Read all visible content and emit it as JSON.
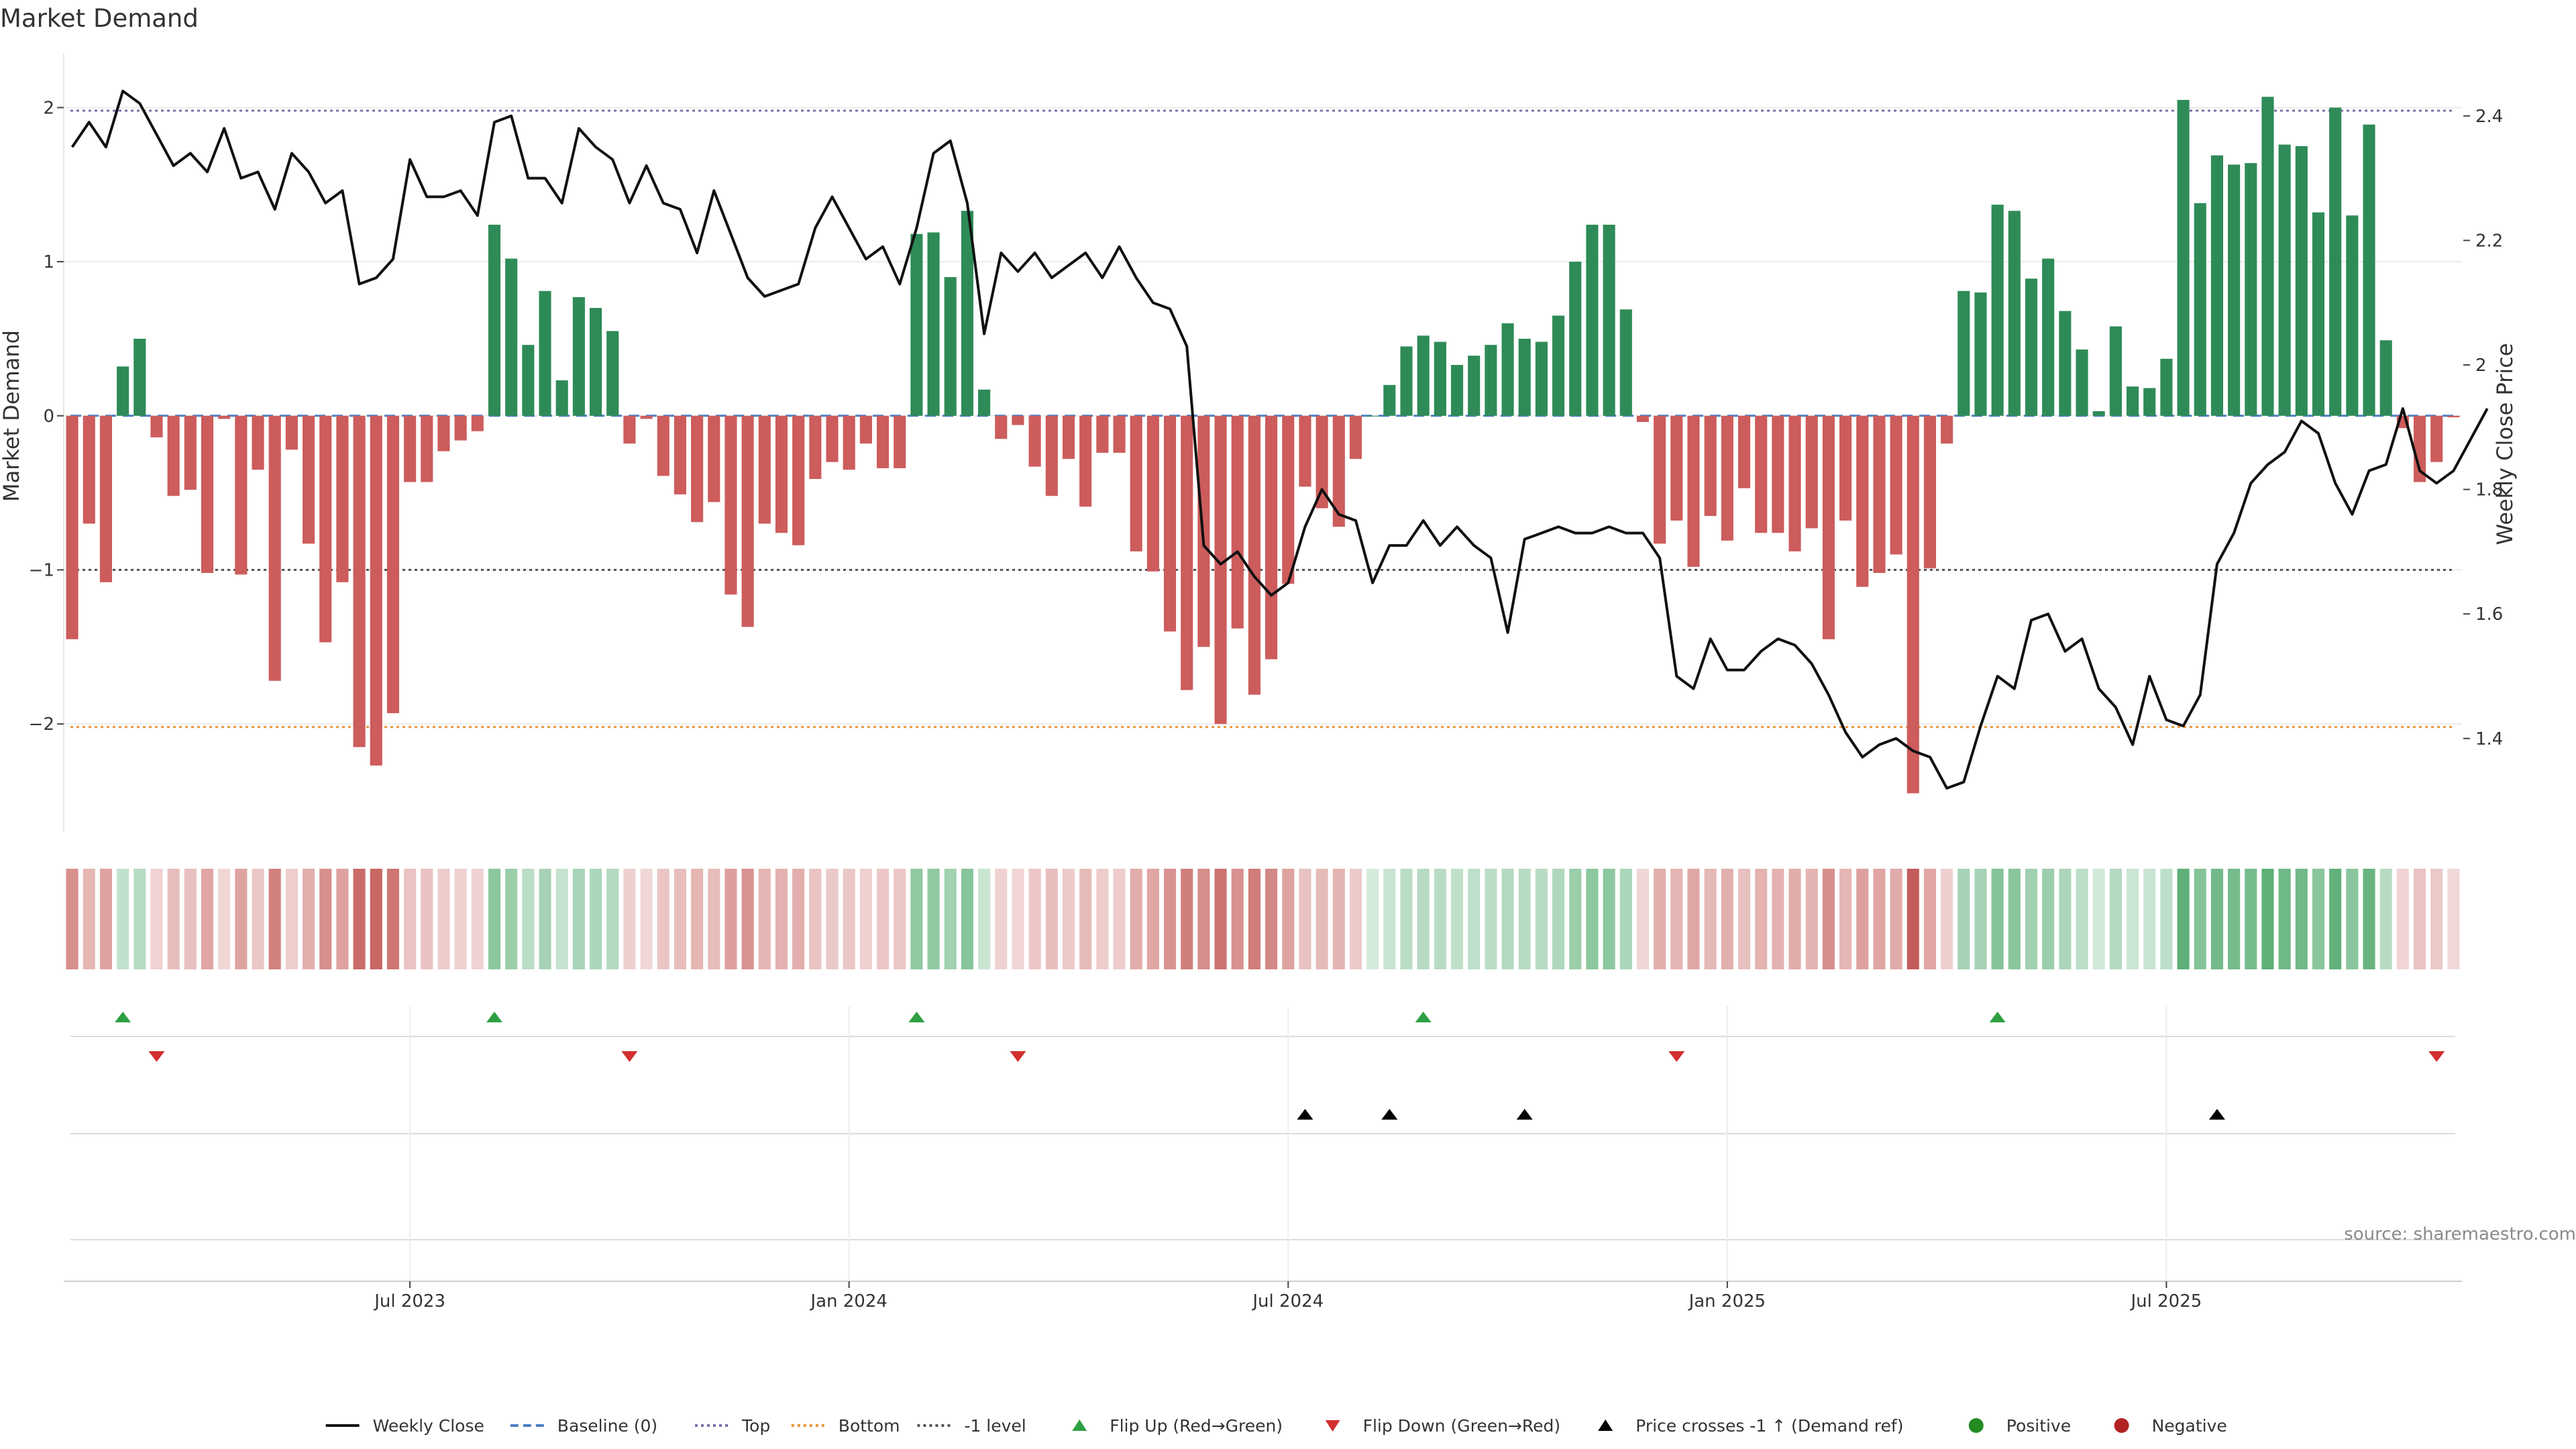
{
  "chart_data": {
    "type": "bar+line",
    "title": "Market Demand",
    "ylabel_left": "Market Demand",
    "ylabel_right": "Weekly Close Price",
    "ylim_left": [
      -2.7,
      2.35
    ],
    "ylim_right": [
      1.25,
      2.5
    ],
    "yticks_left": [
      -2,
      -1,
      0,
      1,
      2
    ],
    "yticks_left_labels": [
      "−2",
      "−1",
      "0",
      "1",
      "2"
    ],
    "yticks_right": [
      1.4,
      1.6,
      1.8,
      2.0,
      2.2,
      2.4
    ],
    "yticks_right_labels": [
      "1.4",
      "1.6",
      "1.8",
      "2",
      "2.2",
      "2.4"
    ],
    "x_ticks": [
      {
        "label": "Jul 2023",
        "index": 20
      },
      {
        "label": "Jan 2024",
        "index": 46
      },
      {
        "label": "Jul 2024",
        "index": 72
      },
      {
        "label": "Jan 2025",
        "index": 98
      },
      {
        "label": "Jul 2025",
        "index": 124
      }
    ],
    "reference_lines": [
      {
        "name": "Baseline (0)",
        "value": 0,
        "color": "#4a7fc1",
        "style": "dashed"
      },
      {
        "name": "Top",
        "value": 1.98,
        "color": "#7c6fa8",
        "style": "dotted"
      },
      {
        "name": "Bottom",
        "value": -2.02,
        "color": "#e8953a",
        "style": "dotted"
      },
      {
        "name": "-1 level",
        "value": -1,
        "color": "#555555",
        "style": "dotted"
      }
    ],
    "demand": [
      -1.45,
      -0.7,
      -1.08,
      0.32,
      0.5,
      -0.14,
      -0.52,
      -0.48,
      -1.02,
      -0.02,
      -1.03,
      -0.35,
      -1.72,
      -0.22,
      -0.83,
      -1.47,
      -1.08,
      -2.15,
      -2.27,
      -1.93,
      -0.43,
      -0.43,
      -0.23,
      -0.16,
      -0.1,
      1.24,
      1.02,
      0.46,
      0.81,
      0.23,
      0.77,
      0.7,
      0.55,
      -0.18,
      -0.02,
      -0.39,
      -0.51,
      -0.69,
      -0.56,
      -1.16,
      -1.37,
      -0.7,
      -0.76,
      -0.84,
      -0.41,
      -0.3,
      -0.35,
      -0.18,
      -0.34,
      -0.34,
      1.18,
      1.19,
      0.9,
      1.33,
      0.17,
      -0.15,
      -0.06,
      -0.33,
      -0.52,
      -0.28,
      -0.59,
      -0.24,
      -0.24,
      -0.88,
      -1.01,
      -1.4,
      -1.78,
      -1.5,
      -2.0,
      -1.38,
      -1.81,
      -1.58,
      -1.09,
      -0.46,
      -0.6,
      -0.72,
      -0.28,
      0.0,
      0.2,
      0.45,
      0.52,
      0.48,
      0.33,
      0.39,
      0.46,
      0.6,
      0.5,
      0.48,
      0.65,
      1.0,
      1.24,
      1.24,
      0.69,
      -0.04,
      -0.83,
      -0.68,
      -0.98,
      -0.65,
      -0.81,
      -0.47,
      -0.76,
      -0.76,
      -0.88,
      -0.73,
      -1.45,
      -0.68,
      -1.11,
      -1.02,
      -0.9,
      -2.45,
      -0.99,
      -0.18,
      0.81,
      0.8,
      1.37,
      1.33,
      0.89,
      1.02,
      0.68,
      0.43,
      0.03,
      0.58,
      0.19,
      0.18,
      0.37,
      2.05,
      1.38,
      1.69,
      1.63,
      1.64,
      2.07,
      1.76,
      1.75,
      1.32,
      2.0,
      1.3,
      1.89,
      0.49,
      -0.08,
      -0.43,
      -0.3,
      -0.01
    ],
    "weekly_close": [
      2.35,
      2.39,
      2.35,
      2.44,
      2.42,
      2.37,
      2.32,
      2.34,
      2.31,
      2.38,
      2.3,
      2.31,
      2.25,
      2.34,
      2.31,
      2.26,
      2.28,
      2.13,
      2.14,
      2.17,
      2.33,
      2.27,
      2.27,
      2.28,
      2.24,
      2.39,
      2.4,
      2.3,
      2.3,
      2.26,
      2.38,
      2.35,
      2.33,
      2.26,
      2.32,
      2.26,
      2.25,
      2.18,
      2.28,
      2.21,
      2.14,
      2.11,
      2.12,
      2.13,
      2.22,
      2.27,
      2.22,
      2.17,
      2.19,
      2.13,
      2.22,
      2.34,
      2.36,
      2.26,
      2.05,
      2.18,
      2.15,
      2.18,
      2.14,
      2.16,
      2.18,
      2.14,
      2.19,
      2.14,
      2.1,
      2.09,
      2.03,
      1.71,
      1.68,
      1.7,
      1.66,
      1.63,
      1.65,
      1.74,
      1.8,
      1.76,
      1.75,
      1.65,
      1.71,
      1.71,
      1.75,
      1.71,
      1.74,
      1.71,
      1.69,
      1.57,
      1.72,
      1.73,
      1.74,
      1.73,
      1.73,
      1.74,
      1.73,
      1.73,
      1.69,
      1.5,
      1.48,
      1.56,
      1.51,
      1.51,
      1.54,
      1.56,
      1.55,
      1.52,
      1.47,
      1.41,
      1.37,
      1.39,
      1.4,
      1.38,
      1.37,
      1.32,
      1.33,
      1.42,
      1.5,
      1.48,
      1.59,
      1.6,
      1.54,
      1.56,
      1.48,
      1.45,
      1.39,
      1.5,
      1.43,
      1.42,
      1.47,
      1.68,
      1.73,
      1.81,
      1.84,
      1.86,
      1.91,
      1.89,
      1.81,
      1.76,
      1.83,
      1.84,
      1.93,
      1.83,
      1.81,
      1.83,
      1.88,
      1.93
    ],
    "flip_up": [
      3,
      25,
      50,
      80,
      114
    ],
    "flip_down": [
      5,
      33,
      56,
      95,
      140
    ],
    "price_crosses_up": [
      73,
      78,
      86,
      127
    ],
    "legend": [
      {
        "label": "Weekly Close",
        "kind": "line",
        "color": "#111111"
      },
      {
        "label": "Baseline (0)",
        "kind": "dashed",
        "color": "#4a7fc1"
      },
      {
        "label": "Top",
        "kind": "dotted",
        "color": "#7c6fa8"
      },
      {
        "label": "Bottom",
        "kind": "dotted",
        "color": "#e8953a"
      },
      {
        "label": "-1 level",
        "kind": "dotted",
        "color": "#555555"
      },
      {
        "label": "Flip Up (Red→Green)",
        "kind": "tri-up",
        "color": "#2ea043"
      },
      {
        "label": "Flip Down (Green→Red)",
        "kind": "tri-down",
        "color": "#d32f2f"
      },
      {
        "label": "Price crosses -1 ↑ (Demand ref)",
        "kind": "tri-up",
        "color": "#000000"
      },
      {
        "label": "Positive",
        "kind": "dot",
        "color": "#228b22"
      },
      {
        "label": "Negative",
        "kind": "dot",
        "color": "#b22222"
      }
    ],
    "source": "source: sharemaestro.com"
  },
  "colors": {
    "positive_bar": "#2e8b57",
    "negative_bar": "#cd5c5c",
    "heat_positive": "#3a9e5a",
    "heat_negative": "#c0504d"
  }
}
